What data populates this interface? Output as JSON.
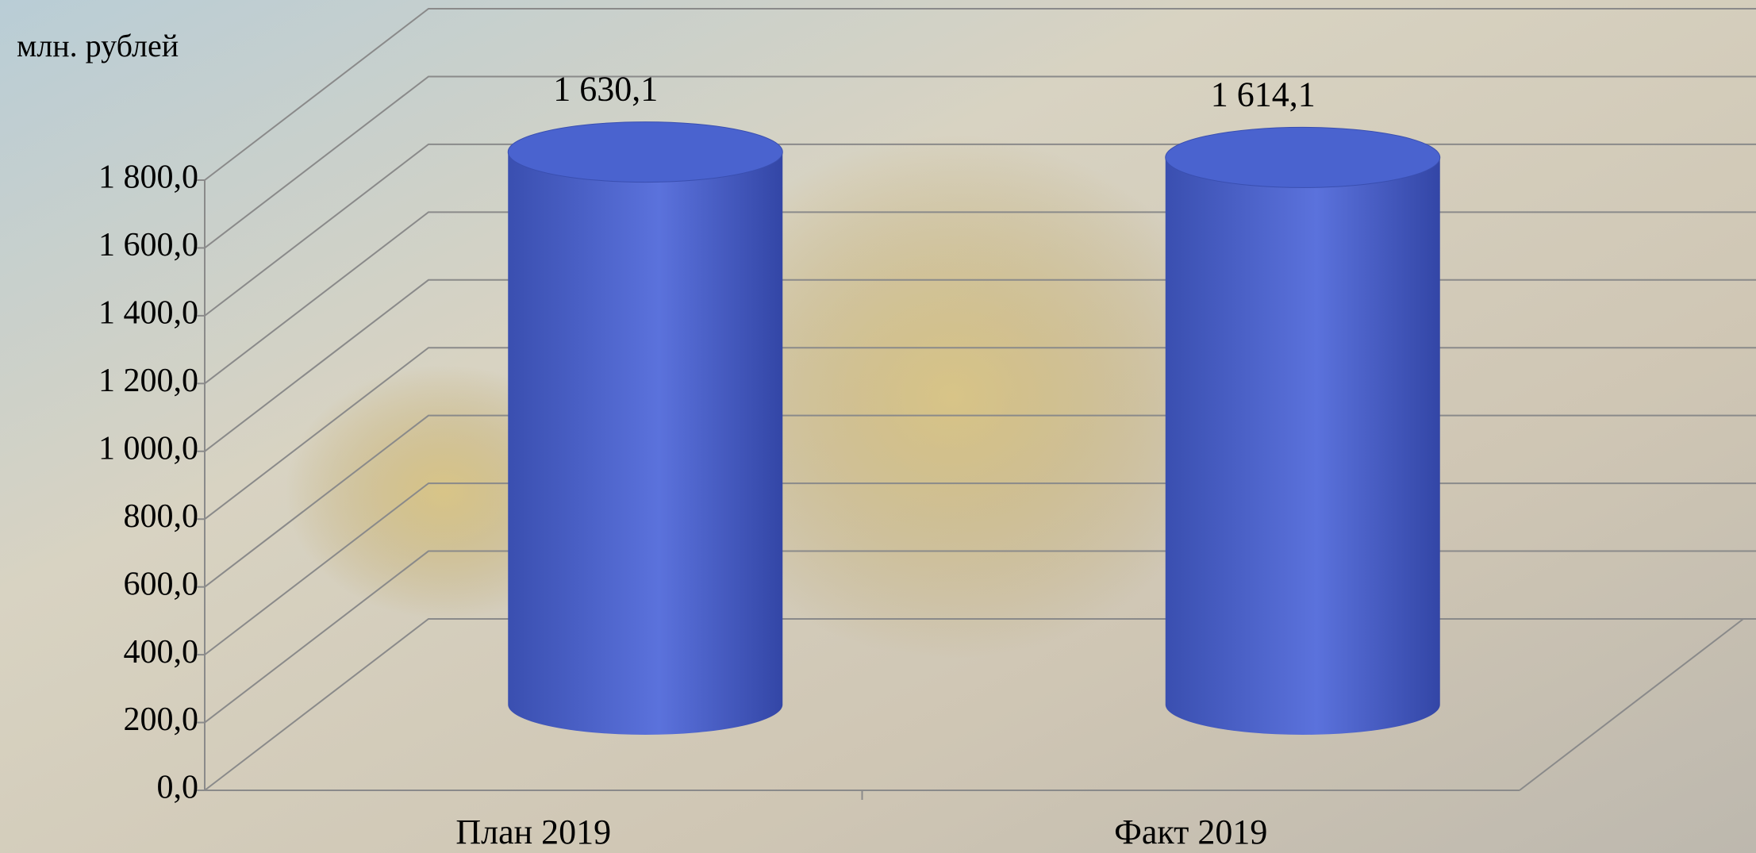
{
  "chart_data": {
    "type": "cylinder",
    "y_label": "млн. рублей",
    "categories": [
      "План 2019",
      "Факт 2019"
    ],
    "values": [
      1630.1,
      1614.1
    ],
    "value_labels": [
      "1 630,1",
      "1 614,1"
    ],
    "color": "#4a63cf",
    "ylim": [
      0,
      1800
    ],
    "yticks": [
      {
        "value": 0,
        "label": "0,0"
      },
      {
        "value": 200,
        "label": "200,0"
      },
      {
        "value": 400,
        "label": "400,0"
      },
      {
        "value": 600,
        "label": "600,0"
      },
      {
        "value": 800,
        "label": "800,0"
      },
      {
        "value": 1000,
        "label": "1 000,0"
      },
      {
        "value": 1200,
        "label": "1 200,0"
      },
      {
        "value": 1400,
        "label": "1 400,0"
      },
      {
        "value": 1600,
        "label": "1 600,0"
      },
      {
        "value": 1800,
        "label": "1 800,0"
      }
    ],
    "grid": true
  }
}
